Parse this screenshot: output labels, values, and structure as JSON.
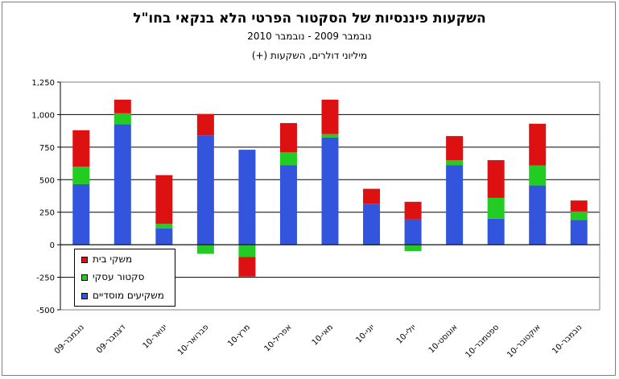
{
  "chart_data": {
    "type": "bar",
    "stacked": true,
    "title": "השקעות פיננסיות של הסקטור הפרטי הלא בנקאי בחו\"ל",
    "subtitle": "נובמבר 2009 - נובמבר 2010",
    "unit_label": "מיליוני דולרים, השקעות (+)",
    "categories": [
      "נובמבר-09",
      "דצמבר-09",
      "ינואר-10",
      "פברואר-10",
      "מרץ-10",
      "אפריל-10",
      "מאי-10",
      "יוני-10",
      "יולי-10",
      "אוגוסט-10",
      "ספטמבר-10",
      "אוקטובר-10",
      "נובמבר-10"
    ],
    "series": [
      {
        "name": "משקיעים מוסדיים",
        "color": "#3355dd",
        "values": [
          465,
          925,
          125,
          840,
          730,
          610,
          825,
          315,
          195,
          610,
          200,
          455,
          190
        ]
      },
      {
        "name": "סקטור עסקי",
        "color": "#22cc22",
        "values": [
          135,
          85,
          35,
          -70,
          -95,
          100,
          25,
          -5,
          -50,
          40,
          160,
          155,
          65
        ]
      },
      {
        "name": "משקי בית",
        "color": "#dd1111",
        "values": [
          280,
          105,
          375,
          165,
          -150,
          225,
          265,
          115,
          135,
          185,
          290,
          320,
          85
        ]
      }
    ],
    "ylim": [
      -500,
      1250
    ],
    "yticks": [
      -500,
      -250,
      0,
      250,
      500,
      750,
      1000,
      1250
    ],
    "ytick_labels": [
      "-500",
      "-250",
      "0",
      "250",
      "500",
      "750",
      "1,000",
      "1,250"
    ],
    "grid": true,
    "legend_position": "bottom-left"
  }
}
